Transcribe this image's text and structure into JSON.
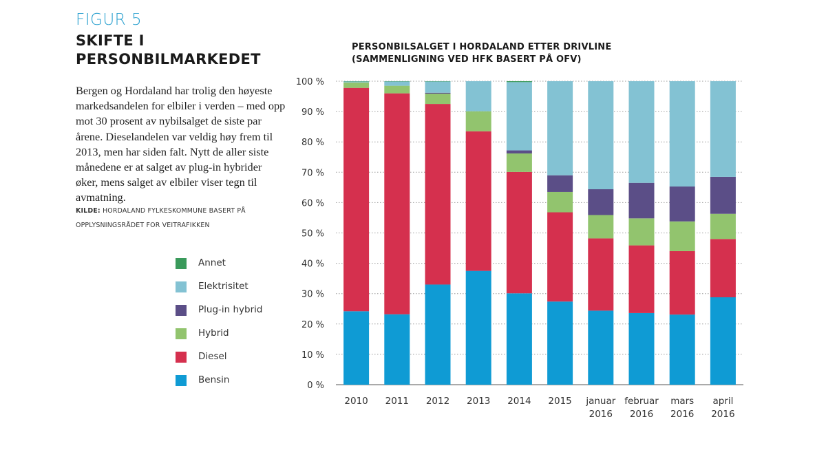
{
  "figure": {
    "label": "FIGUR 5",
    "title_line1": "SKIFTE I",
    "title_line2": "PERSONBILMARKEDET"
  },
  "body_text": "Bergen og Hordaland har trolig den høyeste markedsandelen for elbiler i verden – med opp mot 30 prosent av nybilsalget de siste par årene. Dieselandelen var veldig høy frem til 2013, men har siden falt. Nytt de aller siste månedene er at salget av plug-in hybrider øker, mens salget av elbiler viser tegn til avmatning.",
  "source": {
    "label": "KILDE:",
    "text": "HORDALAND FYLKESKOMMUNE BASERT PÅ OPPLYSNINGSRÅDET FOR VEITRAFIKKEN"
  },
  "legend": [
    {
      "name": "Annet",
      "color": "#3a9a5b"
    },
    {
      "name": "Elektrisitet",
      "color": "#83c2d3"
    },
    {
      "name": "Plug-in hybrid",
      "color": "#5b4e87"
    },
    {
      "name": "Hybrid",
      "color": "#92c46e"
    },
    {
      "name": "Diesel",
      "color": "#d5304e"
    },
    {
      "name": "Bensin",
      "color": "#0f9bd4"
    }
  ],
  "chart_data": {
    "type": "bar",
    "stacked": true,
    "title_line1": "PERSONBILSALGET I HORDALAND ETTER DRIVLINE",
    "title_line2": "(SAMMENLIGNING VED HFK BASERT PÅ OFV)",
    "categories": [
      [
        "2010"
      ],
      [
        "2011"
      ],
      [
        "2012"
      ],
      [
        "2013"
      ],
      [
        "2014"
      ],
      [
        "2015"
      ],
      [
        "januar",
        "2016"
      ],
      [
        "februar",
        "2016"
      ],
      [
        "mars",
        "2016"
      ],
      [
        "april",
        "2016"
      ]
    ],
    "yticks": [
      "0 %",
      "10 %",
      "20 %",
      "30 %",
      "40 %",
      "50 %",
      "60 %",
      "70 %",
      "80 %",
      "90 %",
      "100 %"
    ],
    "ylim": [
      0,
      100
    ],
    "grid": true,
    "series": [
      {
        "name": "Bensin",
        "color": "#0f9bd4",
        "values": [
          24.2,
          23.2,
          33.0,
          37.5,
          30.1,
          27.4,
          24.4,
          23.6,
          23.1,
          28.8
        ]
      },
      {
        "name": "Diesel",
        "color": "#d5304e",
        "values": [
          73.6,
          72.8,
          59.5,
          46.0,
          40.0,
          29.4,
          23.8,
          22.3,
          20.9,
          19.2
        ]
      },
      {
        "name": "Hybrid",
        "color": "#92c46e",
        "values": [
          1.8,
          2.5,
          3.4,
          6.6,
          6.1,
          6.7,
          7.7,
          8.9,
          9.8,
          8.3
        ]
      },
      {
        "name": "Plug-in hybrid",
        "color": "#5b4e87",
        "values": [
          0.0,
          0.0,
          0.3,
          0.0,
          1.0,
          5.5,
          8.5,
          11.7,
          11.5,
          12.2
        ]
      },
      {
        "name": "Elektrisitet",
        "color": "#83c2d3",
        "values": [
          0.3,
          1.4,
          3.7,
          9.9,
          22.5,
          31.0,
          35.6,
          33.5,
          34.7,
          31.5
        ]
      },
      {
        "name": "Annet",
        "color": "#3a9a5b",
        "values": [
          0.1,
          0.1,
          0.1,
          0.0,
          0.3,
          0.0,
          0.0,
          0.0,
          0.0,
          0.0
        ]
      }
    ]
  }
}
